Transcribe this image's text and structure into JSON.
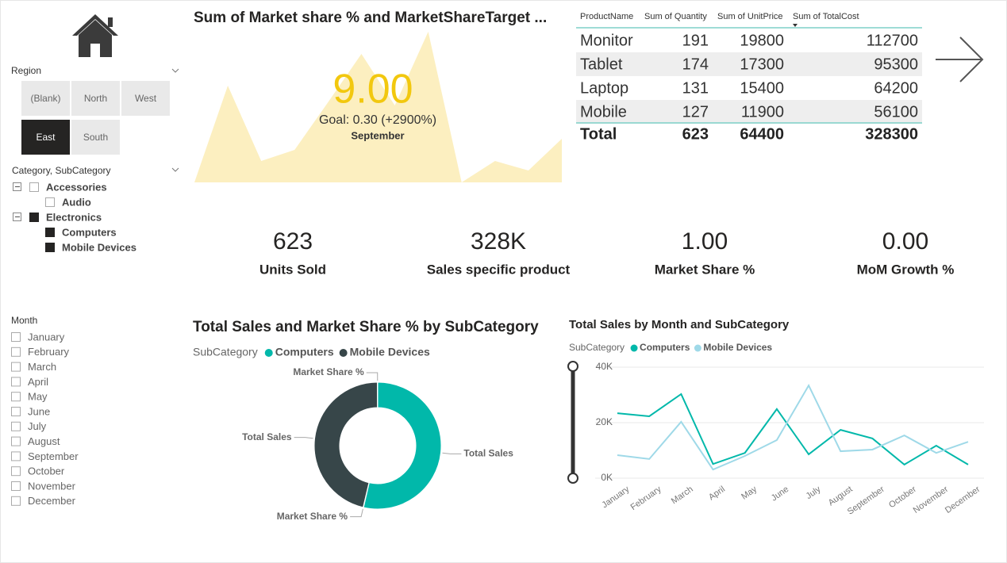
{
  "region_slicer": {
    "title": "Region",
    "options": [
      "(Blank)",
      "North",
      "West",
      "East",
      "South"
    ],
    "selected": "East"
  },
  "category_slicer": {
    "title": "Category, SubCategory",
    "items": [
      {
        "label": "Accessories",
        "checked": false,
        "children": [
          {
            "label": "Audio",
            "checked": false
          }
        ]
      },
      {
        "label": "Electronics",
        "checked": true,
        "children": [
          {
            "label": "Computers",
            "checked": true
          },
          {
            "label": "Mobile Devices",
            "checked": true
          }
        ]
      }
    ]
  },
  "month_slicer": {
    "title": "Month",
    "options": [
      "January",
      "February",
      "March",
      "April",
      "May",
      "June",
      "July",
      "August",
      "September",
      "October",
      "November",
      "December"
    ]
  },
  "table": {
    "columns": [
      "ProductName",
      "Sum of Quantity",
      "Sum of UnitPrice",
      "Sum of TotalCost"
    ],
    "rows": [
      [
        "Monitor",
        191,
        19800,
        112700
      ],
      [
        "Tablet",
        174,
        17300,
        95300
      ],
      [
        "Laptop",
        131,
        15400,
        64200
      ],
      [
        "Mobile",
        127,
        11900,
        56100
      ]
    ],
    "total": [
      "Total",
      623,
      64400,
      328300
    ]
  },
  "cards": [
    {
      "value": "623",
      "label": "Units Sold"
    },
    {
      "value": "328K",
      "label": "Sales specific product"
    },
    {
      "value": "1.00",
      "label": "Market Share %"
    },
    {
      "value": "0.00",
      "label": "MoM Growth %"
    }
  ],
  "chart_data": [
    {
      "type": "area",
      "title": "Sum of Market share % and MarketShareTarget ...",
      "kpi_value": "9.00",
      "goal": "Goal: 0.30 (+2900%)",
      "period": "September",
      "values": [
        0,
        6.1,
        1.35,
        2.05,
        5.05,
        8.1,
        4.85,
        9.5,
        0,
        1.35,
        0.75,
        2.75
      ],
      "ylim": [
        0,
        10
      ],
      "color": "#fcefc0",
      "kpi_color": "#f2c80f"
    },
    {
      "type": "pie",
      "donut": true,
      "title": "Total Sales and Market Share % by SubCategory",
      "legend_title": "SubCategory",
      "categories": [
        "Total Sales",
        "Market Share %"
      ],
      "series": [
        {
          "name": "Computers",
          "color": "#01b8aa",
          "values": [
            53.6,
            0.1
          ]
        },
        {
          "name": "Mobile Devices",
          "color": "#374649",
          "values": [
            46.2,
            0.1
          ]
        }
      ]
    },
    {
      "type": "line",
      "title": "Total Sales by Month and SubCategory",
      "legend_title": "SubCategory",
      "categories": [
        "January",
        "February",
        "March",
        "April",
        "May",
        "June",
        "July",
        "August",
        "September",
        "October",
        "November",
        "December"
      ],
      "series": [
        {
          "name": "Computers",
          "color": "#01b8aa",
          "values": [
            23400,
            22300,
            30300,
            5100,
            9100,
            24900,
            8600,
            17400,
            14300,
            4900,
            11700,
            4900
          ]
        },
        {
          "name": "Mobile Devices",
          "color": "#9fd9e8",
          "values": [
            8300,
            6900,
            20300,
            3100,
            8000,
            13700,
            33400,
            9700,
            10300,
            15400,
            9100,
            13100
          ]
        }
      ],
      "ylim": [
        0,
        40000
      ],
      "yticks": [
        {
          "value": 0,
          "label": "0K"
        },
        {
          "value": 20000,
          "label": "20K"
        },
        {
          "value": 40000,
          "label": "40K"
        }
      ],
      "grid": true
    }
  ]
}
